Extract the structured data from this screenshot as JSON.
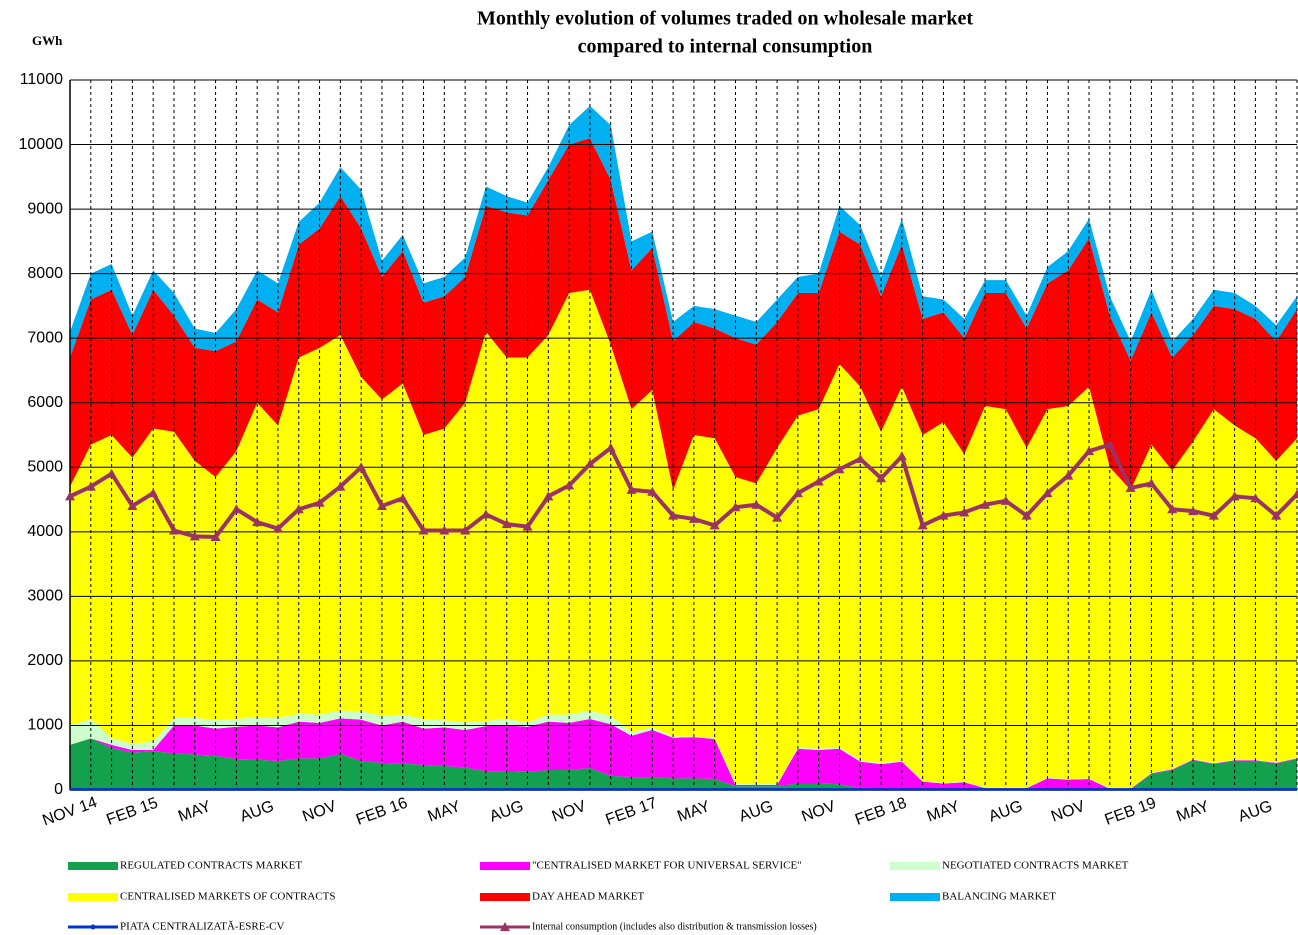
{
  "chart_data": {
    "type": "stacked-area",
    "title": "Monthly evolution of volumes traded on wholesale market",
    "subtitle": "compared to internal consumption",
    "y_label": "GWh",
    "ylim": [
      0,
      11000
    ],
    "yticks": [
      0,
      1000,
      2000,
      3000,
      4000,
      5000,
      6000,
      7000,
      8000,
      9000,
      10000,
      11000
    ],
    "grid": true,
    "legend": "bottom",
    "categories": [
      "NOV 14",
      null,
      null,
      "FEB 15",
      null,
      null,
      "MAY",
      null,
      null,
      "AUG",
      null,
      null,
      "NOV",
      null,
      null,
      "FEB 16",
      null,
      null,
      "MAY",
      null,
      null,
      "AUG",
      null,
      null,
      "NOV",
      null,
      null,
      "FEB 17",
      null,
      null,
      "MAY",
      null,
      null,
      "AUG",
      null,
      null,
      "NOV",
      null,
      null,
      "FEB 18",
      null,
      null,
      "MAY",
      null,
      null,
      "AUG",
      null,
      null,
      "NOV",
      null,
      null,
      "FEB 19",
      null,
      null,
      "MAY",
      null,
      null,
      "AUG",
      null,
      null
    ],
    "series": [
      {
        "name": "REGULATED CONTRACTS MARKET",
        "kind": "area",
        "color": "#14a14e",
        "values": [
          700,
          800,
          650,
          580,
          600,
          570,
          550,
          530,
          480,
          470,
          450,
          490,
          490,
          560,
          450,
          420,
          410,
          390,
          370,
          350,
          290,
          290,
          280,
          310,
          310,
          340,
          220,
          200,
          200,
          180,
          180,
          170,
          60,
          60,
          60,
          100,
          100,
          90,
          30,
          20,
          20,
          10,
          10,
          10,
          10,
          10,
          10,
          10,
          10,
          10,
          10,
          10,
          250,
          310,
          460,
          400,
          450,
          450,
          410,
          480
        ]
      },
      {
        "name": "\"CENTRALISED MARKET FOR UNIVERSAL SERVICE\"",
        "kind": "area",
        "color": "#ff00ff",
        "values": [
          0,
          0,
          50,
          40,
          20,
          430,
          450,
          420,
          500,
          530,
          520,
          570,
          550,
          550,
          640,
          580,
          650,
          560,
          600,
          580,
          700,
          710,
          700,
          750,
          730,
          760,
          800,
          640,
          730,
          630,
          640,
          620,
          20,
          20,
          20,
          540,
          520,
          550,
          410,
          380,
          420,
          120,
          90,
          110,
          20,
          20,
          20,
          170,
          150,
          160,
          10,
          10,
          10,
          10,
          10,
          10,
          10,
          10,
          10,
          10
        ]
      },
      {
        "name": "NEGOTIATED CONTRACTS MARKET",
        "kind": "area",
        "color": "#ccffcc",
        "values": [
          300,
          300,
          100,
          100,
          130,
          120,
          120,
          130,
          120,
          130,
          150,
          120,
          130,
          120,
          130,
          150,
          110,
          150,
          110,
          120,
          80,
          100,
          70,
          110,
          130,
          130,
          130,
          60,
          40,
          20,
          10,
          10,
          20,
          20,
          20,
          20,
          20,
          20,
          20,
          20,
          20,
          10,
          10,
          10,
          10,
          10,
          10,
          10,
          10,
          10,
          10,
          10,
          10,
          10,
          10,
          10,
          10,
          10,
          10,
          10
        ]
      },
      {
        "name": "CENTRALISED MARKETS OF CONTRACTS",
        "kind": "area",
        "color": "#ffff00",
        "values": [
          3700,
          4250,
          4700,
          4430,
          4850,
          4430,
          3980,
          3770,
          4150,
          4870,
          4530,
          5520,
          5680,
          5820,
          5180,
          4900,
          5130,
          4400,
          4520,
          4950,
          6030,
          5600,
          5650,
          5880,
          6530,
          6520,
          5750,
          5000,
          5230,
          3820,
          4670,
          4650,
          4750,
          4650,
          5200,
          5140,
          5260,
          5940,
          5790,
          5130,
          5790,
          5360,
          5590,
          5070,
          5910,
          5860,
          5260,
          5710,
          5780,
          6070,
          4970,
          4620,
          5080,
          4620,
          4920,
          5480,
          5180,
          4980,
          4670,
          4950
        ]
      },
      {
        "name": "DAY AHEAD MARKET",
        "kind": "area",
        "color": "#ff0000",
        "values": [
          2000,
          2250,
          2250,
          1900,
          2150,
          1800,
          1750,
          1950,
          1700,
          1600,
          1750,
          1750,
          1850,
          2150,
          2300,
          1900,
          2050,
          2050,
          2050,
          1950,
          1950,
          2250,
          2200,
          2400,
          2300,
          2350,
          2550,
          2150,
          2200,
          2300,
          1750,
          1700,
          2150,
          2150,
          1950,
          1900,
          1800,
          2050,
          2200,
          2100,
          2200,
          1800,
          1700,
          1800,
          1750,
          1800,
          1850,
          1950,
          2100,
          2300,
          2350,
          2000,
          2050,
          1750,
          1650,
          1600,
          1800,
          1850,
          1850,
          2000
        ]
      },
      {
        "name": "BALANCING MARKET",
        "kind": "area",
        "color": "#00b0f0",
        "values": [
          400,
          400,
          400,
          300,
          300,
          350,
          300,
          280,
          500,
          450,
          450,
          350,
          400,
          450,
          600,
          250,
          250,
          300,
          300,
          300,
          300,
          250,
          200,
          200,
          300,
          500,
          850,
          450,
          250,
          300,
          250,
          300,
          350,
          350,
          350,
          250,
          300,
          400,
          300,
          300,
          400,
          350,
          200,
          300,
          200,
          200,
          200,
          250,
          300,
          300,
          300,
          300,
          350,
          250,
          250,
          250,
          250,
          200,
          250,
          200
        ]
      },
      {
        "name": "PIATA CENTRALIZATĂ-ESRE-CV",
        "kind": "line",
        "marker": "dot",
        "color": "#0033cc",
        "values": [
          10,
          10,
          10,
          10,
          10,
          10,
          10,
          10,
          10,
          10,
          10,
          10,
          10,
          10,
          10,
          10,
          10,
          10,
          10,
          10,
          10,
          10,
          10,
          10,
          10,
          10,
          10,
          10,
          10,
          10,
          10,
          10,
          10,
          10,
          10,
          10,
          10,
          10,
          10,
          10,
          10,
          10,
          10,
          10,
          10,
          10,
          10,
          10,
          10,
          10,
          10,
          10,
          10,
          10,
          10,
          10,
          10,
          10,
          10,
          10
        ]
      },
      {
        "name": "Internal consumption (includes also distribution & transmission losses)",
        "kind": "line",
        "marker": "triangle",
        "color": "#993366",
        "values": [
          4550,
          4700,
          4900,
          4400,
          4600,
          4020,
          3930,
          3920,
          4350,
          4150,
          4050,
          4350,
          4450,
          4700,
          5000,
          4400,
          4520,
          4020,
          4020,
          4020,
          4270,
          4120,
          4080,
          4550,
          4720,
          5050,
          5300,
          4650,
          4620,
          4250,
          4200,
          4100,
          4380,
          4420,
          4220,
          4600,
          4780,
          4970,
          5130,
          4830,
          5170,
          4100,
          4250,
          4300,
          4420,
          4480,
          4250,
          4600,
          4870,
          5250,
          5350,
          4680,
          4750,
          4350,
          4320,
          4250,
          4550,
          4520,
          4250,
          4580
        ]
      }
    ]
  }
}
